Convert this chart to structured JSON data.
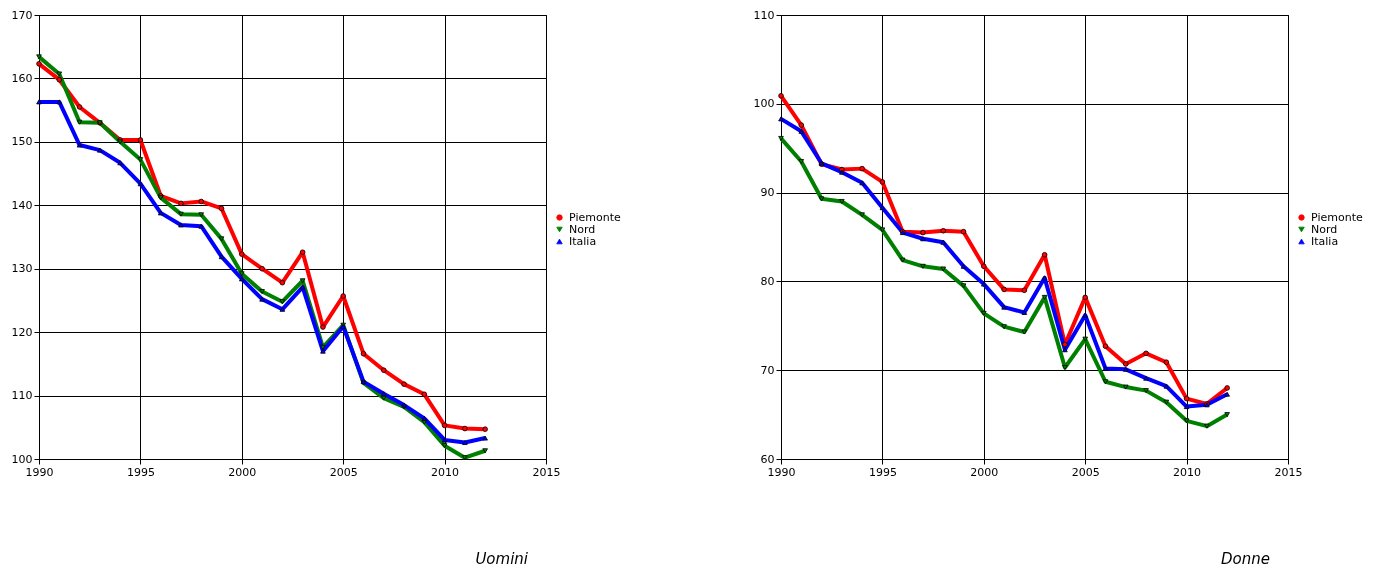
{
  "chart_data": [
    {
      "type": "line",
      "title": "Uomini",
      "x": [
        1990,
        1991,
        1992,
        1993,
        1994,
        1995,
        1996,
        1997,
        1998,
        1999,
        2000,
        2001,
        2002,
        2003,
        2004,
        2005,
        2006,
        2007,
        2008,
        2009,
        2010,
        2011,
        2012
      ],
      "xlim": [
        1990,
        2015
      ],
      "xticks": [
        1990,
        1995,
        2000,
        2005,
        2010,
        2015
      ],
      "ylim": [
        100,
        170
      ],
      "yticks": [
        100,
        110,
        120,
        130,
        140,
        150,
        160,
        170
      ],
      "grid": true,
      "legend": "right",
      "line_style": "solid",
      "series": [
        {
          "name": "Piemonte",
          "color": "#ff0000",
          "marker": "circle",
          "values": [
            162.3,
            159.8,
            155.5,
            153,
            150.3,
            150.3,
            141.5,
            140.3,
            140.6,
            139.5,
            132.3,
            130,
            127.8,
            132.6,
            120.8,
            125.7,
            116.6,
            114,
            111.8,
            110.2,
            105.3,
            104.8,
            104.7
          ]
        },
        {
          "name": "Nord",
          "color": "#008000",
          "marker": "triangle-down",
          "values": [
            163.4,
            160.7,
            153.1,
            153,
            150,
            147.2,
            141.2,
            138.6,
            138.5,
            134.7,
            129.2,
            126.4,
            124.8,
            128.1,
            117.6,
            121.1,
            112,
            109.6,
            108.2,
            105.8,
            102.1,
            100.2,
            101.3
          ]
        },
        {
          "name": "Italia",
          "color": "#0000ff",
          "marker": "triangle-up",
          "values": [
            156.3,
            156.3,
            149.5,
            148.7,
            146.7,
            143.4,
            138.8,
            136.9,
            136.7,
            131.9,
            128.4,
            125.2,
            123.6,
            127.1,
            117,
            120.9,
            112.2,
            110.3,
            108.5,
            106.4,
            103,
            102.6,
            103.3
          ]
        }
      ]
    },
    {
      "type": "line",
      "title": "Donne",
      "x": [
        1990,
        1991,
        1992,
        1993,
        1994,
        1995,
        1996,
        1997,
        1998,
        1999,
        2000,
        2001,
        2002,
        2003,
        2004,
        2005,
        2006,
        2007,
        2008,
        2009,
        2010,
        2011,
        2012
      ],
      "xlim": [
        1990,
        2015
      ],
      "xticks": [
        1990,
        1995,
        2000,
        2005,
        2010,
        2015
      ],
      "ylim": [
        60,
        110
      ],
      "yticks": [
        60,
        70,
        80,
        90,
        100,
        110
      ],
      "grid": true,
      "legend": "right",
      "line_style": "solid",
      "series": [
        {
          "name": "Piemonte",
          "color": "#ff0000",
          "marker": "circle",
          "values": [
            100.9,
            97.6,
            93.2,
            92.6,
            92.7,
            91.2,
            85.6,
            85.5,
            85.7,
            85.6,
            81.7,
            79.1,
            79,
            83,
            72.9,
            78.2,
            72.7,
            70.7,
            71.9,
            70.9,
            66.8,
            66.2,
            68
          ]
        },
        {
          "name": "Nord",
          "color": "#008000",
          "marker": "triangle-down",
          "values": [
            96.1,
            93.5,
            89.3,
            89,
            87.5,
            85.8,
            82.4,
            81.7,
            81.4,
            79.5,
            76.4,
            74.9,
            74.3,
            78.2,
            70.3,
            73.5,
            68.7,
            68.1,
            67.7,
            66.4,
            64.3,
            63.7,
            65
          ]
        },
        {
          "name": "Italia",
          "color": "#0000ff",
          "marker": "triangle-up",
          "values": [
            98.3,
            96.9,
            93.3,
            92.3,
            91.1,
            88.3,
            85.5,
            84.8,
            84.4,
            81.7,
            79.7,
            77.1,
            76.5,
            80.4,
            72.3,
            76.2,
            70.2,
            70.1,
            69.1,
            68.2,
            65.9,
            66.1,
            67.3
          ]
        }
      ]
    }
  ]
}
